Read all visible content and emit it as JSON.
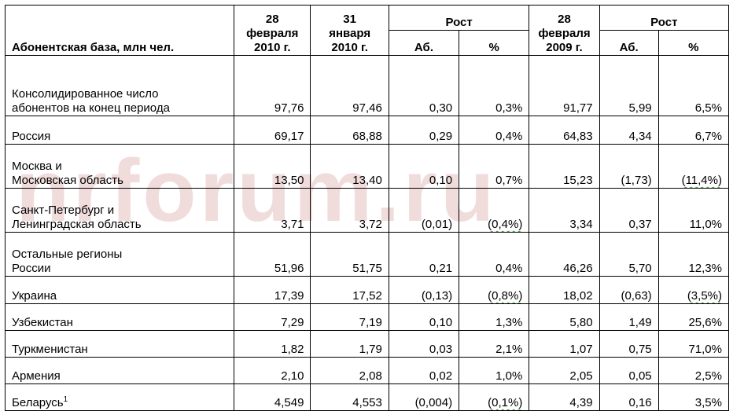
{
  "watermark": "nrforum.ru",
  "header": {
    "base_label": "Абонентская база, млн чел.",
    "col_feb2010": "28\nфевраля\n2010 г.",
    "col_jan2010": "31\nянваря\n2010 г.",
    "growth1": "Рост",
    "growth1_abs": "Аб.",
    "growth1_pct": "%",
    "col_feb2009": "28\nфевраля\n2009 г.",
    "growth2": "Рост",
    "growth2_abs": "Аб.",
    "growth2_pct": "%"
  },
  "rows": [
    {
      "label": "Консолидированное число\nабонентов на конец периода",
      "feb2010": "97,76",
      "jan2010": "97,46",
      "abs1": "0,30",
      "pct1": "0,3%",
      "feb2009": "91,77",
      "abs2": "5,99",
      "pct2": "6,5%"
    },
    {
      "label": "Россия",
      "feb2010": "69,17",
      "jan2010": "68,88",
      "abs1": "0,29",
      "pct1": "0,4%",
      "feb2009": "64,83",
      "abs2": "4,34",
      "pct2": "6,7%"
    },
    {
      "label": "Москва и\nМосковская  область",
      "feb2010": "13,50",
      "jan2010": "13,40",
      "abs1": "0,10",
      "pct1": "0,7%",
      "feb2009": "15,23",
      "abs2": "(1,73)",
      "pct2": "(11,4%)"
    },
    {
      "label": "Санкт-Петербург и\nЛенинградская область",
      "feb2010": "3,71",
      "jan2010": "3,72",
      "abs1": "(0,01)",
      "pct1": "(0,4%)",
      "feb2009": "3,34",
      "abs2": "0,37",
      "pct2": "11,0%"
    },
    {
      "label": "Остальные регионы\nРоссии",
      "feb2010": "51,96",
      "jan2010": "51,75",
      "abs1": "0,21",
      "pct1": "0,4%",
      "feb2009": "46,26",
      "abs2": "5,70",
      "pct2": "12,3%"
    },
    {
      "label": "Украина",
      "feb2010": "17,39",
      "jan2010": "17,52",
      "abs1": "(0,13)",
      "pct1": "(0,8%)",
      "feb2009": "18,02",
      "abs2": "(0,63)",
      "pct2": "(3,5%)"
    },
    {
      "label": "Узбекистан",
      "feb2010": "7,29",
      "jan2010": "7,19",
      "abs1": "0,10",
      "pct1": "1,3%",
      "feb2009": "5,80",
      "abs2": "1,49",
      "pct2": "25,6%"
    },
    {
      "label": "Туркменистан",
      "feb2010": "1,82",
      "jan2010": "1,79",
      "abs1": "0,03",
      "pct1": "2,1%",
      "feb2009": "1,07",
      "abs2": "0,75",
      "pct2": "71,0%"
    },
    {
      "label": "Армения",
      "feb2010": "2,10",
      "jan2010": "2,08",
      "abs1": "0,02",
      "pct1": "1,0%",
      "feb2009": "2,05",
      "abs2": "0,05",
      "pct2": "2,5%"
    },
    {
      "label": "Беларусь",
      "footnote": "1",
      "feb2010": "4,549",
      "jan2010": "4,553",
      "abs1": "(0,004)",
      "pct1": "(0,1%)",
      "feb2009": "4,39",
      "abs2": "0,16",
      "pct2": "3,5%"
    }
  ]
}
